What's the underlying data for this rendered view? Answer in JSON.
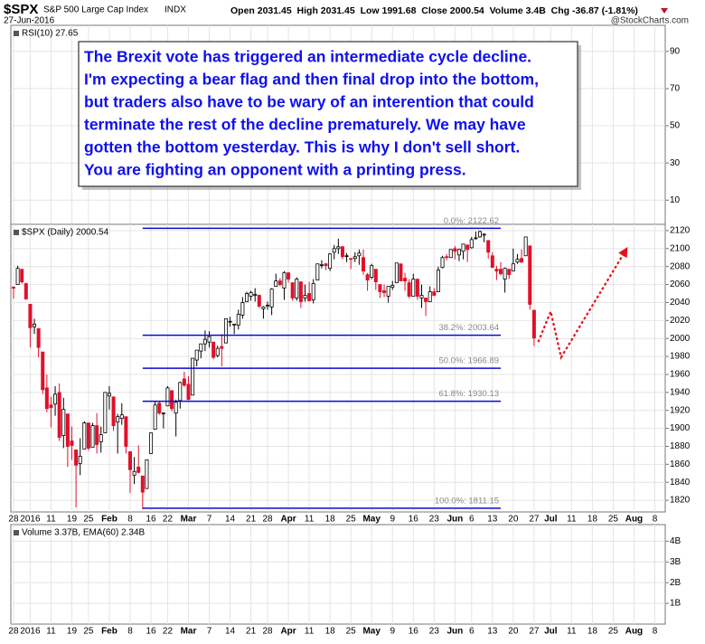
{
  "header": {
    "symbol": "$SPX",
    "name": "S&P 500 Large Cap Index",
    "exchange": "INDX",
    "date": "27-Jun-2016",
    "quote": "Open 2031.45  High 2031.45  Low 1991.68  Close 2000.54  Volume 3.4B  Chg -36.87 (-1.81%)",
    "watermark": "@StockCharts.com"
  },
  "annotation": {
    "lines": [
      "The Brexit vote has triggered an intermediate cycle decline.",
      "I'm expecting a bear flag and then final drop into the bottom,",
      "but traders also have to be wary of an interention that could",
      "terminate the rest of the decline prematurely. We may have",
      "gotten the bottom yesterday. This is why I don't sell short.",
      "You are fighting an opponent with a printing press."
    ]
  },
  "chart_data": [
    {
      "type": "line",
      "label": "RSI(10) 27.65",
      "ylim": [
        -3,
        104
      ],
      "yticks": [
        10,
        30,
        50,
        70,
        90
      ],
      "grid": true
    },
    {
      "type": "candlestick",
      "label": "$SPX (Daily) 2000.54",
      "up_color": "#000000",
      "down_color": "#e0102a",
      "xlim": [
        -0.65,
        156.5
      ],
      "ylim": [
        1807,
        2127
      ],
      "yticks": [
        1820,
        1840,
        1860,
        1880,
        1900,
        1920,
        1940,
        1960,
        1980,
        2000,
        2020,
        2040,
        2060,
        2080,
        2100,
        2120
      ],
      "xticks": [
        {
          "value": 0,
          "label": "28"
        },
        {
          "value": 4,
          "label": "2016"
        },
        {
          "value": 9,
          "label": "11"
        },
        {
          "value": 14,
          "label": "19"
        },
        {
          "value": 18,
          "label": "25"
        },
        {
          "value": 23,
          "label": "Feb"
        },
        {
          "value": 28,
          "label": "8"
        },
        {
          "value": 33,
          "label": "16"
        },
        {
          "value": 37,
          "label": "22"
        },
        {
          "value": 42,
          "label": "Mar"
        },
        {
          "value": 47,
          "label": "7"
        },
        {
          "value": 52,
          "label": "14"
        },
        {
          "value": 57,
          "label": "21"
        },
        {
          "value": 61,
          "label": "28"
        },
        {
          "value": 66,
          "label": "Apr"
        },
        {
          "value": 71,
          "label": "11"
        },
        {
          "value": 76,
          "label": "18"
        },
        {
          "value": 81,
          "label": "25"
        },
        {
          "value": 86,
          "label": "May"
        },
        {
          "value": 91,
          "label": "9"
        },
        {
          "value": 96,
          "label": "16"
        },
        {
          "value": 101,
          "label": "23"
        },
        {
          "value": 106,
          "label": "Jun"
        },
        {
          "value": 110,
          "label": "6"
        },
        {
          "value": 115,
          "label": "13"
        },
        {
          "value": 120,
          "label": "20"
        },
        {
          "value": 125,
          "label": "27"
        },
        {
          "value": 129,
          "label": "Jul"
        },
        {
          "value": 134,
          "label": "11"
        },
        {
          "value": 139,
          "label": "18"
        },
        {
          "value": 144,
          "label": "25"
        },
        {
          "value": 149,
          "label": "Aug"
        },
        {
          "value": 154,
          "label": "8"
        }
      ],
      "grid": true,
      "x": [
        0,
        1,
        2,
        3,
        4,
        5,
        6,
        7,
        8,
        9,
        10,
        11,
        12,
        13,
        14,
        15,
        16,
        17,
        18,
        19,
        20,
        21,
        22,
        23,
        24,
        25,
        26,
        27,
        28,
        29,
        30,
        31,
        32,
        33,
        34,
        35,
        36,
        37,
        38,
        39,
        40,
        41,
        42,
        43,
        44,
        45,
        46,
        47,
        48,
        49,
        50,
        51,
        52,
        53,
        54,
        55,
        56,
        57,
        58,
        59,
        60,
        61,
        62,
        63,
        64,
        65,
        66,
        67,
        68,
        69,
        70,
        71,
        72,
        73,
        74,
        75,
        76,
        77,
        78,
        79,
        80,
        81,
        82,
        83,
        84,
        85,
        86,
        87,
        88,
        89,
        90,
        91,
        92,
        93,
        94,
        95,
        96,
        97,
        98,
        99,
        100,
        101,
        102,
        103,
        104,
        105,
        106,
        107,
        108,
        109,
        110,
        111,
        112,
        113,
        114,
        115,
        116,
        117,
        118,
        119,
        120,
        121,
        122,
        123,
        124,
        125
      ],
      "ohlc": [
        [
          2057,
          2058,
          2044,
          2056
        ],
        [
          2060,
          2081,
          2060,
          2078
        ],
        [
          2077,
          2077,
          2061,
          2063
        ],
        [
          2061,
          2062,
          2043,
          2044
        ],
        [
          2038,
          2038,
          1990,
          2012
        ],
        [
          2013,
          2022,
          2005,
          2016
        ],
        [
          2011,
          2011,
          1979,
          1990
        ],
        [
          1985,
          1985,
          1938,
          1943
        ],
        [
          1945,
          1960,
          1918,
          1922
        ],
        [
          1926,
          1935,
          1901,
          1923
        ],
        [
          1927,
          1947,
          1914,
          1938
        ],
        [
          1940,
          1950,
          1886,
          1890
        ],
        [
          1892,
          1934,
          1878,
          1921
        ],
        [
          1916,
          1916,
          1857,
          1880
        ],
        [
          1886,
          1902,
          1865,
          1881
        ],
        [
          1876,
          1876,
          1812,
          1859
        ],
        [
          1861,
          1889,
          1848,
          1869
        ],
        [
          1877,
          1908,
          1877,
          1906
        ],
        [
          1906,
          1906,
          1875,
          1878
        ],
        [
          1879,
          1906,
          1879,
          1903
        ],
        [
          1903,
          1917,
          1872,
          1882
        ],
        [
          1885,
          1902,
          1873,
          1893
        ],
        [
          1895,
          1940,
          1895,
          1940
        ],
        [
          1936,
          1947,
          1921,
          1939
        ],
        [
          1935,
          1935,
          1897,
          1903
        ],
        [
          1907,
          1916,
          1872,
          1913
        ],
        [
          1911,
          1928,
          1904,
          1915
        ],
        [
          1913,
          1913,
          1872,
          1880
        ],
        [
          1874,
          1874,
          1828,
          1854
        ],
        [
          1848,
          1868,
          1838,
          1852
        ],
        [
          1857,
          1881,
          1850,
          1851
        ],
        [
          1847,
          1847,
          1810,
          1829
        ],
        [
          1833,
          1865,
          1833,
          1865
        ],
        [
          1872,
          1895,
          1872,
          1895
        ],
        [
          1899,
          1930,
          1899,
          1926
        ],
        [
          1928,
          1930,
          1915,
          1917
        ],
        [
          1916,
          1918,
          1900,
          1917
        ],
        [
          1925,
          1947,
          1925,
          1945
        ],
        [
          1942,
          1942,
          1919,
          1922
        ],
        [
          1917,
          1932,
          1891,
          1929
        ],
        [
          1931,
          1952,
          1922,
          1951
        ],
        [
          1955,
          1963,
          1946,
          1948
        ],
        [
          1949,
          1958,
          1932,
          1932
        ],
        [
          1937,
          1978,
          1937,
          1978
        ],
        [
          1976,
          1987,
          1969,
          1987
        ],
        [
          1986,
          1994,
          1978,
          1994
        ],
        [
          1994,
          2009,
          1986,
          1999
        ],
        [
          1996,
          2008,
          1990,
          2002
        ],
        [
          1996,
          1996,
          1977,
          1979
        ],
        [
          1981,
          1992,
          1979,
          1989
        ],
        [
          1991,
          2005,
          1969,
          1989
        ],
        [
          1995,
          2022,
          1995,
          2022
        ],
        [
          2019,
          2024,
          2013,
          2019
        ],
        [
          2015,
          2016,
          2005,
          2016
        ],
        [
          2015,
          2032,
          2010,
          2027
        ],
        [
          2026,
          2046,
          2022,
          2040
        ],
        [
          2041,
          2052,
          2041,
          2050
        ],
        [
          2047,
          2053,
          2042,
          2051
        ],
        [
          2048,
          2056,
          2041,
          2049
        ],
        [
          2048,
          2049,
          2034,
          2036
        ],
        [
          2033,
          2036,
          2022,
          2035
        ],
        [
          2037,
          2041,
          2032,
          2037
        ],
        [
          2035,
          2056,
          2026,
          2055
        ],
        [
          2058,
          2072,
          2058,
          2064
        ],
        [
          2064,
          2067,
          2058,
          2060
        ],
        [
          2056,
          2075,
          2043,
          2073
        ],
        [
          2073,
          2074,
          2062,
          2066
        ],
        [
          2062,
          2062,
          2042,
          2045
        ],
        [
          2045,
          2068,
          2042,
          2066
        ],
        [
          2063,
          2063,
          2034,
          2041
        ],
        [
          2045,
          2060,
          2041,
          2048
        ],
        [
          2050,
          2063,
          2041,
          2042
        ],
        [
          2043,
          2066,
          2039,
          2061
        ],
        [
          2065,
          2083,
          2065,
          2083
        ],
        [
          2082,
          2087,
          2078,
          2082
        ],
        [
          2083,
          2084,
          2076,
          2081
        ],
        [
          2078,
          2095,
          2075,
          2094
        ],
        [
          2096,
          2104,
          2088,
          2100
        ],
        [
          2100,
          2111,
          2094,
          2102
        ],
        [
          2102,
          2103,
          2088,
          2091
        ],
        [
          2092,
          2095,
          2085,
          2092
        ],
        [
          2089,
          2089,
          2077,
          2088
        ],
        [
          2089,
          2096,
          2085,
          2091
        ],
        [
          2092,
          2099,
          2082,
          2095
        ],
        [
          2090,
          2099,
          2071,
          2075
        ],
        [
          2071,
          2073,
          2053,
          2065
        ],
        [
          2068,
          2083,
          2066,
          2081
        ],
        [
          2077,
          2077,
          2054,
          2063
        ],
        [
          2060,
          2060,
          2045,
          2052
        ],
        [
          2053,
          2060,
          2046,
          2051
        ],
        [
          2047,
          2058,
          2040,
          2058
        ],
        [
          2057,
          2064,
          2054,
          2059
        ],
        [
          2062,
          2084,
          2062,
          2084
        ],
        [
          2083,
          2083,
          2064,
          2064
        ],
        [
          2067,
          2073,
          2053,
          2064
        ],
        [
          2062,
          2066,
          2045,
          2047
        ],
        [
          2047,
          2072,
          2047,
          2066
        ],
        [
          2066,
          2066,
          2043,
          2047
        ],
        [
          2045,
          2060,
          2034,
          2048
        ],
        [
          2045,
          2045,
          2025,
          2041
        ],
        [
          2041,
          2058,
          2041,
          2052
        ],
        [
          2052,
          2056,
          2047,
          2048
        ],
        [
          2052,
          2080,
          2052,
          2076
        ],
        [
          2079,
          2092,
          2078,
          2090
        ],
        [
          2091,
          2094,
          2087,
          2090
        ],
        [
          2090,
          2099,
          2090,
          2099
        ],
        [
          2100,
          2103,
          2088,
          2097
        ],
        [
          2093,
          2100,
          2086,
          2099
        ],
        [
          2097,
          2105,
          2088,
          2105
        ],
        [
          2104,
          2104,
          2085,
          2099
        ],
        [
          2101,
          2113,
          2100,
          2110
        ],
        [
          2111,
          2119,
          2110,
          2112
        ],
        [
          2113,
          2120,
          2112,
          2119
        ],
        [
          2115,
          2117,
          2107,
          2116
        ],
        [
          2109,
          2109,
          2089,
          2096
        ],
        [
          2092,
          2096,
          2079,
          2079
        ],
        [
          2077,
          2081,
          2065,
          2075
        ],
        [
          2077,
          2085,
          2070,
          2072
        ],
        [
          2066,
          2079,
          2051,
          2078
        ],
        [
          2077,
          2077,
          2066,
          2071
        ],
        [
          2075,
          2100,
          2075,
          2083
        ],
        [
          2085,
          2094,
          2083,
          2088
        ],
        [
          2089,
          2099,
          2084,
          2085
        ],
        [
          2092,
          2113,
          2092,
          2113
        ],
        [
          2103,
          2103,
          2032,
          2038
        ],
        [
          2031.45,
          2031.45,
          1991.68,
          2000.54
        ]
      ],
      "fib_color": "#0a0ad0",
      "fib_range": [
        31,
        117
      ],
      "fib_levels": [
        {
          "label": "0.0%: 2122.62",
          "value": 2122.62
        },
        {
          "label": "38.2%: 2003.64",
          "value": 2003.64
        },
        {
          "label": "50.0%: 1966.89",
          "value": 1966.89
        },
        {
          "label": "61.8%: 1930.13",
          "value": 1930.13
        },
        {
          "label": "100.0%: 1811.15",
          "value": 1811.15
        }
      ],
      "projection": {
        "color": "#e8101a",
        "x": [
          126,
          129,
          131.5,
          147
        ],
        "y": [
          1996,
          2030,
          1979,
          2098
        ]
      }
    },
    {
      "type": "bar",
      "label": "Volume 3.37B, EMA(60) 2.34B",
      "xlim": [
        -0.65,
        156.5
      ],
      "ylim": [
        0,
        4.8
      ],
      "yticks": [
        {
          "value": 1,
          "label": "1B"
        },
        {
          "value": 2,
          "label": "2B"
        },
        {
          "value": 3,
          "label": "3B"
        },
        {
          "value": 4,
          "label": "4B"
        }
      ],
      "xticks": [
        {
          "value": 0,
          "label": "28"
        },
        {
          "value": 4,
          "label": "2016"
        },
        {
          "value": 9,
          "label": "11"
        },
        {
          "value": 14,
          "label": "19"
        },
        {
          "value": 18,
          "label": "25"
        },
        {
          "value": 23,
          "label": "Feb"
        },
        {
          "value": 28,
          "label": "8"
        },
        {
          "value": 33,
          "label": "16"
        },
        {
          "value": 37,
          "label": "22"
        },
        {
          "value": 42,
          "label": "Mar"
        },
        {
          "value": 47,
          "label": "7"
        },
        {
          "value": 52,
          "label": "14"
        },
        {
          "value": 57,
          "label": "21"
        },
        {
          "value": 61,
          "label": "28"
        },
        {
          "value": 66,
          "label": "Apr"
        },
        {
          "value": 71,
          "label": "11"
        },
        {
          "value": 76,
          "label": "18"
        },
        {
          "value": 81,
          "label": "25"
        },
        {
          "value": 86,
          "label": "May"
        },
        {
          "value": 91,
          "label": "9"
        },
        {
          "value": 96,
          "label": "16"
        },
        {
          "value": 101,
          "label": "23"
        },
        {
          "value": 106,
          "label": "Jun"
        },
        {
          "value": 110,
          "label": "6"
        },
        {
          "value": 115,
          "label": "13"
        },
        {
          "value": 120,
          "label": "20"
        },
        {
          "value": 125,
          "label": "27"
        },
        {
          "value": 129,
          "label": "Jul"
        },
        {
          "value": 134,
          "label": "11"
        },
        {
          "value": 139,
          "label": "18"
        },
        {
          "value": 144,
          "label": "25"
        },
        {
          "value": 149,
          "label": "Aug"
        },
        {
          "value": 154,
          "label": "8"
        }
      ],
      "grid": true
    }
  ]
}
